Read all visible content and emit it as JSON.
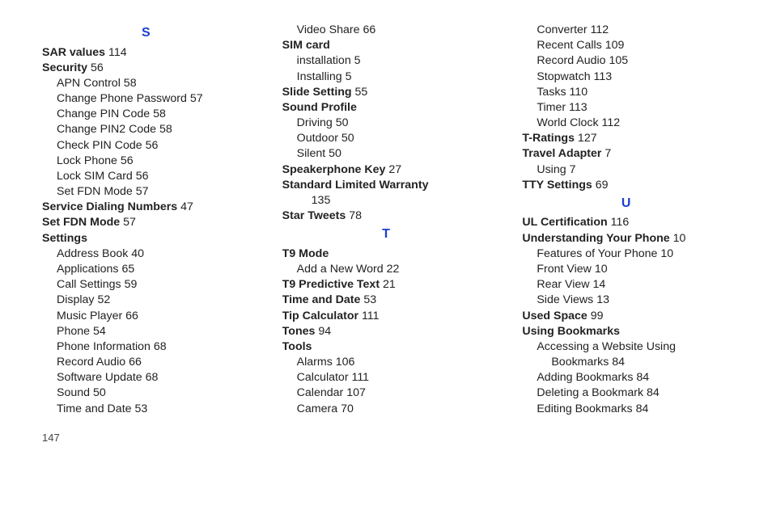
{
  "letter_color": "#1a3fd1",
  "pageNumber": "147",
  "columns": [
    [
      {
        "type": "letter",
        "text": "S"
      },
      {
        "type": "main",
        "label": "SAR values",
        "page": "114"
      },
      {
        "type": "main",
        "label": "Security",
        "page": "56"
      },
      {
        "type": "sub",
        "label": "APN Control",
        "page": "58"
      },
      {
        "type": "sub",
        "label": "Change Phone Password",
        "page": "57"
      },
      {
        "type": "sub",
        "label": "Change PIN Code",
        "page": "58"
      },
      {
        "type": "sub",
        "label": "Change PIN2 Code",
        "page": "58"
      },
      {
        "type": "sub",
        "label": "Check PIN Code",
        "page": "56"
      },
      {
        "type": "sub",
        "label": "Lock Phone",
        "page": "56"
      },
      {
        "type": "sub",
        "label": "Lock SIM Card",
        "page": "56"
      },
      {
        "type": "sub",
        "label": "Set FDN Mode",
        "page": "57"
      },
      {
        "type": "main",
        "label": "Service Dialing Numbers",
        "page": "47"
      },
      {
        "type": "main",
        "label": "Set FDN Mode",
        "page": "57"
      },
      {
        "type": "main",
        "label": "Settings",
        "page": ""
      },
      {
        "type": "sub",
        "label": "Address Book",
        "page": "40"
      },
      {
        "type": "sub",
        "label": "Applications",
        "page": "65"
      },
      {
        "type": "sub",
        "label": "Call Settings",
        "page": "59"
      },
      {
        "type": "sub",
        "label": "Display",
        "page": "52"
      },
      {
        "type": "sub",
        "label": "Music Player",
        "page": "66"
      },
      {
        "type": "sub",
        "label": "Phone",
        "page": "54"
      },
      {
        "type": "sub",
        "label": "Phone Information",
        "page": "68"
      },
      {
        "type": "sub",
        "label": "Record Audio",
        "page": "66"
      },
      {
        "type": "sub",
        "label": "Software Update",
        "page": "68"
      },
      {
        "type": "sub",
        "label": "Sound",
        "page": "50"
      },
      {
        "type": "sub",
        "label": "Time and Date",
        "page": "53"
      }
    ],
    [
      {
        "type": "sub",
        "label": "Video Share",
        "page": "66"
      },
      {
        "type": "main",
        "label": "SIM card",
        "page": ""
      },
      {
        "type": "sub",
        "label": "installation",
        "page": "5"
      },
      {
        "type": "sub",
        "label": "Installing",
        "page": "5"
      },
      {
        "type": "main",
        "label": "Slide Setting",
        "page": "55"
      },
      {
        "type": "main",
        "label": "Sound Profile",
        "page": ""
      },
      {
        "type": "sub",
        "label": "Driving",
        "page": "50"
      },
      {
        "type": "sub",
        "label": "Outdoor",
        "page": "50"
      },
      {
        "type": "sub",
        "label": "Silent",
        "page": "50"
      },
      {
        "type": "main",
        "label": "Speakerphone Key",
        "page": "27"
      },
      {
        "type": "main",
        "label": "Standard Limited Warranty",
        "page": ""
      },
      {
        "type": "sub2",
        "label": "",
        "page": "135"
      },
      {
        "type": "main",
        "label": "Star Tweets",
        "page": "78"
      },
      {
        "type": "letter",
        "text": "T"
      },
      {
        "type": "main",
        "label": "T9 Mode",
        "page": ""
      },
      {
        "type": "sub",
        "label": "Add a New Word",
        "page": "22"
      },
      {
        "type": "main",
        "label": "T9 Predictive Text",
        "page": "21"
      },
      {
        "type": "main",
        "label": "Time and Date",
        "page": "53"
      },
      {
        "type": "main",
        "label": "Tip Calculator",
        "page": "111"
      },
      {
        "type": "main",
        "label": "Tones",
        "page": "94"
      },
      {
        "type": "main",
        "label": "Tools",
        "page": ""
      },
      {
        "type": "sub",
        "label": "Alarms",
        "page": "106"
      },
      {
        "type": "sub",
        "label": "Calculator",
        "page": "111"
      },
      {
        "type": "sub",
        "label": "Calendar",
        "page": "107"
      },
      {
        "type": "sub",
        "label": "Camera",
        "page": "70"
      }
    ],
    [
      {
        "type": "sub",
        "label": "Converter",
        "page": "112"
      },
      {
        "type": "sub",
        "label": "Recent Calls",
        "page": "109"
      },
      {
        "type": "sub",
        "label": "Record Audio",
        "page": "105"
      },
      {
        "type": "sub",
        "label": "Stopwatch",
        "page": "113"
      },
      {
        "type": "sub",
        "label": "Tasks",
        "page": "110"
      },
      {
        "type": "sub",
        "label": "Timer",
        "page": "113"
      },
      {
        "type": "sub",
        "label": "World Clock",
        "page": "112"
      },
      {
        "type": "main",
        "label": "T-Ratings",
        "page": "127"
      },
      {
        "type": "main",
        "label": "Travel Adapter",
        "page": "7"
      },
      {
        "type": "sub",
        "label": "Using",
        "page": "7"
      },
      {
        "type": "main",
        "label": "TTY Settings",
        "page": "69"
      },
      {
        "type": "letter",
        "text": "U"
      },
      {
        "type": "main",
        "label": "UL Certification",
        "page": "116"
      },
      {
        "type": "main",
        "label": "Understanding Your Phone",
        "page": "10"
      },
      {
        "type": "sub",
        "label": "Features of Your Phone",
        "page": "10"
      },
      {
        "type": "sub",
        "label": "Front View",
        "page": "10"
      },
      {
        "type": "sub",
        "label": "Rear View",
        "page": "14"
      },
      {
        "type": "sub",
        "label": "Side Views",
        "page": "13"
      },
      {
        "type": "main",
        "label": "Used Space",
        "page": "99"
      },
      {
        "type": "main",
        "label": "Using Bookmarks",
        "page": ""
      },
      {
        "type": "sub",
        "label": "Accessing a Website Using",
        "page": ""
      },
      {
        "type": "sub2",
        "label": "Bookmarks",
        "page": "84"
      },
      {
        "type": "sub",
        "label": "Adding Bookmarks",
        "page": "84"
      },
      {
        "type": "sub",
        "label": "Deleting a Bookmark",
        "page": "84"
      },
      {
        "type": "sub",
        "label": "Editing Bookmarks",
        "page": "84"
      }
    ]
  ]
}
